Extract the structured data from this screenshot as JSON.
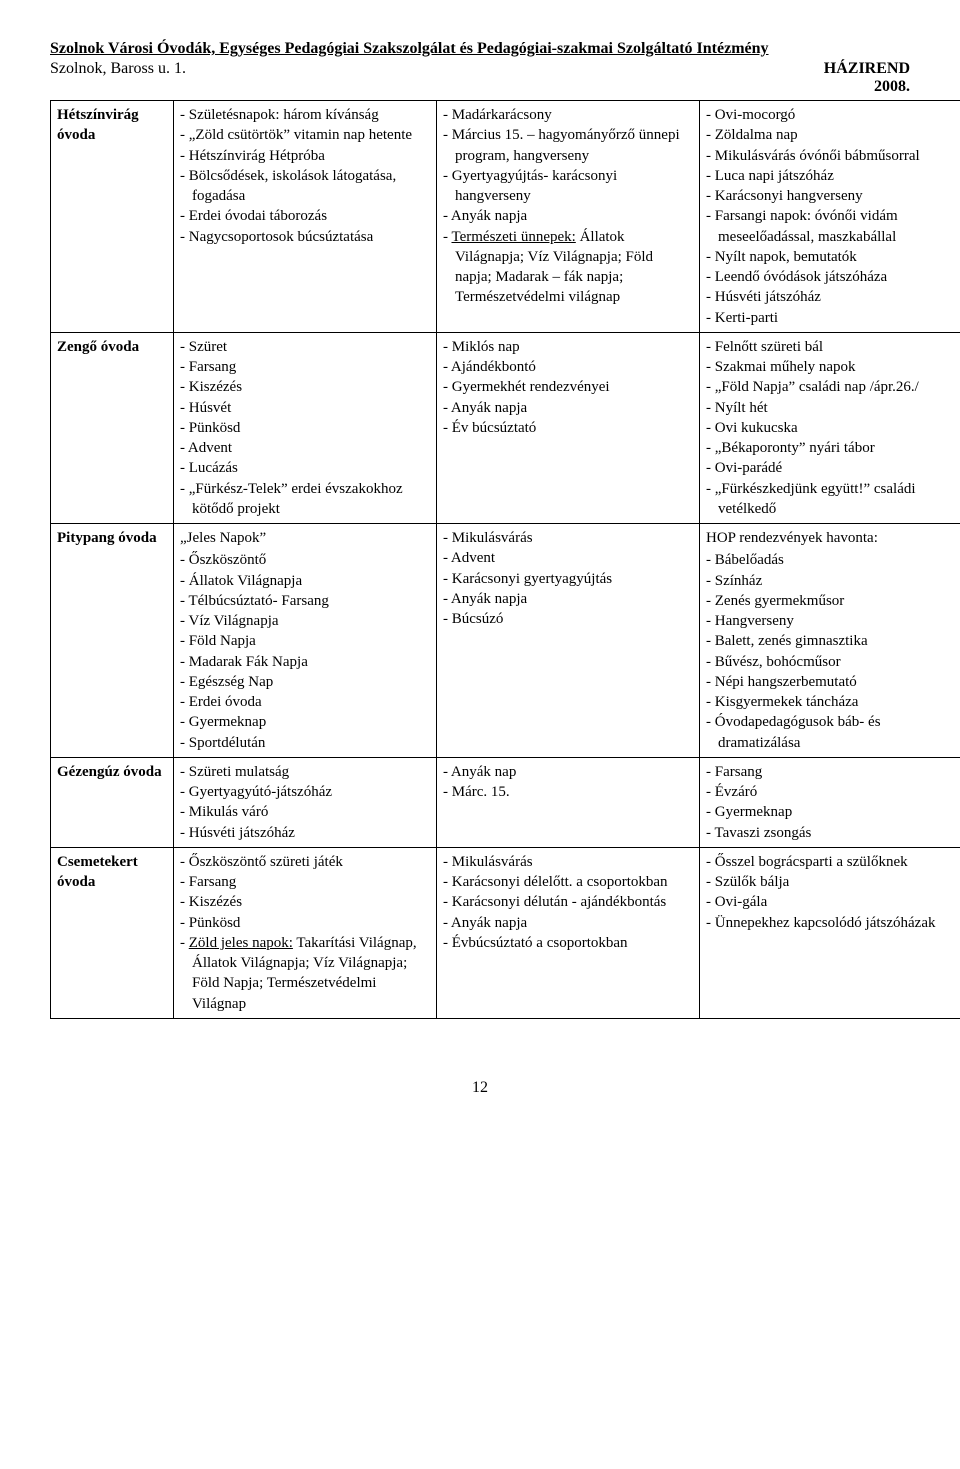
{
  "header": {
    "title": "Szolnok Városi Óvodák, Egységes Pedagógiai Szakszolgálat és Pedagógiai-szakmai Szolgáltató Intézmény",
    "address": "Szolnok, Baross u. 1.",
    "right1": "HÁZIREND",
    "right2": "2008."
  },
  "rows": [
    {
      "name": "Hétszínvirág óvoda",
      "col2_items": [
        "Születésnapok: három kívánság",
        "„Zöld csütörtök” vitamin nap hetente",
        "Hétszínvirág Hétpróba",
        "Bölcsődések, iskolások látogatása, fogadása",
        "Erdei óvodai táborozás",
        "Nagycsoportosok búcsúztatása"
      ],
      "col3_html": "<ul class=\"dash\"><li>Madárkarácsony</li><li>Március 15. – hagyományőrző ünnepi program, hangverseny</li><li>Gyertyagyújtás- karácsonyi hangverseny</li><li>Anyák napja</li><li><span class=\"underline\">Természeti ünnepek:</span> Állatok Világnapja; Víz Világnapja; Föld napja; Madarak – fák napja; Természetvédelmi világnap</li></ul>",
      "col4_items": [
        "Ovi-mocorgó",
        "Zöldalma nap",
        "Mikulásvárás óvónői bábműsorral",
        "Luca napi játszóház",
        "Karácsonyi hangverseny",
        "Farsangi napok: óvónői vidám meseelőadással, maszkabállal",
        "Nyílt napok, bemutatók",
        "Leendő óvódások játszóháza",
        "Húsvéti játszóház",
        "Kerti-parti"
      ]
    },
    {
      "name": "Zengő óvoda",
      "col2_items": [
        "Szüret",
        "Farsang",
        "Kiszézés",
        "Húsvét",
        "Pünkösd",
        "Advent",
        "Lucázás",
        "„Fürkész-Telek” erdei évszakokhoz kötődő projekt"
      ],
      "col3_items": [
        "Miklós nap",
        "Ajándékbontó",
        "Gyermekhét rendezvényei",
        "Anyák napja",
        "Év búcsúztató"
      ],
      "col4_items": [
        "Felnőtt szüreti bál",
        "Szakmai műhely napok",
        "„Föld Napja” családi nap /ápr.26./",
        "Nyílt hét",
        "Ovi kukucska",
        "„Békaporonty” nyári tábor",
        "Ovi-parádé",
        "„Fürkészkedjünk együtt!” családi vetélkedő"
      ]
    },
    {
      "name": "Pitypang óvoda",
      "col2_pre": "„Jeles Napok”",
      "col2_items": [
        "Őszköszöntő",
        "Állatok Világnapja",
        "Télbúcsúztató- Farsang",
        "Víz Világnapja",
        "Föld Napja",
        "Madarak Fák Napja",
        "Egészség Nap",
        "Erdei óvoda",
        "Gyermeknap",
        "Sportdélután"
      ],
      "col3_items": [
        "Mikulásvárás",
        "Advent",
        "Karácsonyi gyertyagyújtás",
        "Anyák napja",
        "Búcsúzó"
      ],
      "col4_pre": "HOP rendezvények havonta:",
      "col4_items": [
        "Bábelőadás",
        "Színház",
        "Zenés gyermekműsor",
        "Hangverseny",
        "Balett, zenés gimnasztika",
        "Bűvész, bohócműsor",
        "Népi hangszerbemutató",
        "Kisgyermekek táncháza",
        "Óvodapedagógusok báb- és dramatizálása"
      ]
    },
    {
      "name": "Gézengúz óvoda",
      "col2_items": [
        "Szüreti mulatság",
        "Gyertyagyútó-játszóház",
        "Mikulás váró",
        "Húsvéti játszóház"
      ],
      "col3_items": [
        "Anyák nap",
        "Márc. 15."
      ],
      "col4_items": [
        "Farsang",
        "Évzáró",
        "Gyermeknap",
        "Tavaszi zsongás"
      ]
    },
    {
      "name": "Csemetekert óvoda",
      "col2_html": "<ul class=\"dash\"><li>Őszköszöntő szüreti játék</li><li>Farsang</li><li>Kiszézés</li><li>Pünkösd</li><li><span class=\"underline\">Zöld jeles napok:</span> Takarítási Világnap, Állatok Világnapja; Víz Világnapja; Föld Napja; Természetvédelmi Világnap</li></ul>",
      "col3_items": [
        "Mikulásvárás",
        "Karácsonyi délelőtt. a csoportokban",
        "Karácsonyi délután - ajándékbontás",
        "Anyák napja",
        "Évbúcsúztató a csoportokban"
      ],
      "col4_items": [
        "Ősszel bográcsparti a szülőknek",
        "Szülők bálja",
        "Ovi-gála",
        "Ünnepekhez kapcsolódó játszóházak"
      ]
    }
  ],
  "page_number": "12"
}
